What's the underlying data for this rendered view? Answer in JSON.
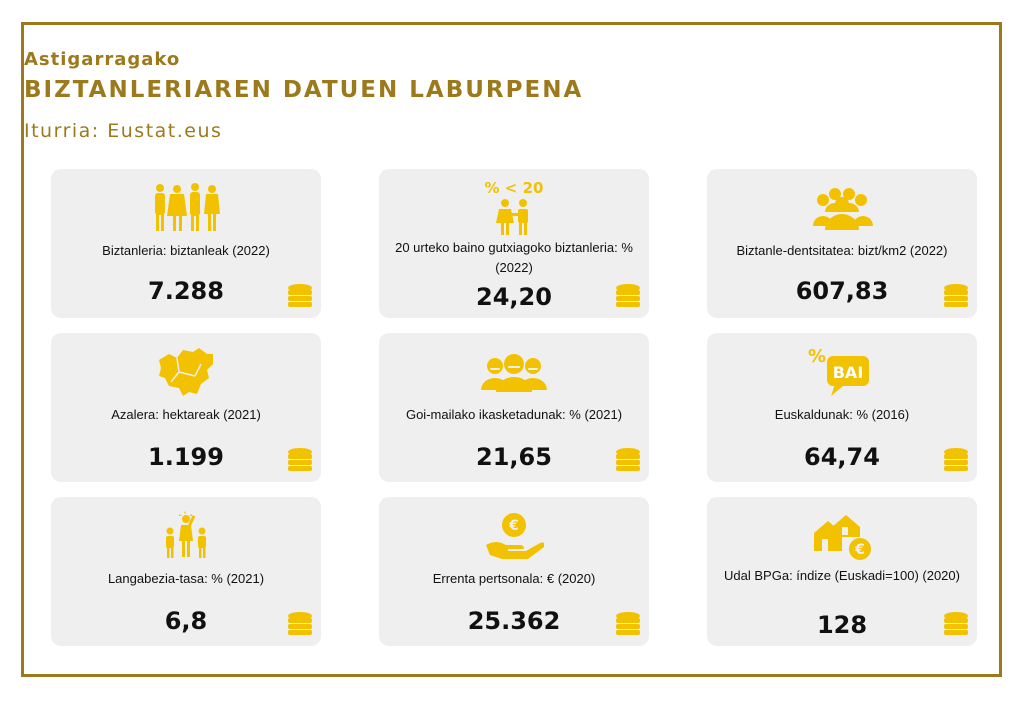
{
  "header": {
    "subtitle": "Astigarragako",
    "title": "BIZTANLERIAREN DATUEN LABURPENA",
    "source": "Iturria: Eustat.eus"
  },
  "colors": {
    "accent": "#9c7a1c",
    "icon": "#f2c200",
    "card_bg": "#efefef"
  },
  "cards": [
    {
      "label": "Biztanleria: biztanleak (2022)",
      "value": "7.288",
      "icon": "people-group-icon"
    },
    {
      "label": "20 urteko baino gutxiagoko biztanleria: % (2022)",
      "value": "24,20",
      "icon": "children-under-20-icon",
      "icon_text": "% < 20"
    },
    {
      "label": "Biztanle-dentsitatea: bizt/km2 (2022)",
      "value": "607,83",
      "icon": "crowd-icon"
    },
    {
      "label": "Azalera: hektareak (2021)",
      "value": "1.199",
      "icon": "territory-map-icon"
    },
    {
      "label": "Goi-mailako ikasketadunak: % (2021)",
      "value": "21,65",
      "icon": "graduates-icon"
    },
    {
      "label": "Euskaldunak: % (2016)",
      "value": "64,74",
      "icon": "speech-bubble-bai-icon",
      "icon_text": "BAI",
      "icon_text2": "%"
    },
    {
      "label": "Langabezia-tasa: % (2021)",
      "value": "6,8",
      "icon": "unemployment-icon"
    },
    {
      "label": "Errenta pertsonala: € (2020)",
      "value": "25.362",
      "icon": "hand-euro-icon"
    },
    {
      "label": "Udal BPGa: índize (Euskadi=100) (2020)",
      "value": "128",
      "icon": "houses-euro-icon"
    }
  ]
}
